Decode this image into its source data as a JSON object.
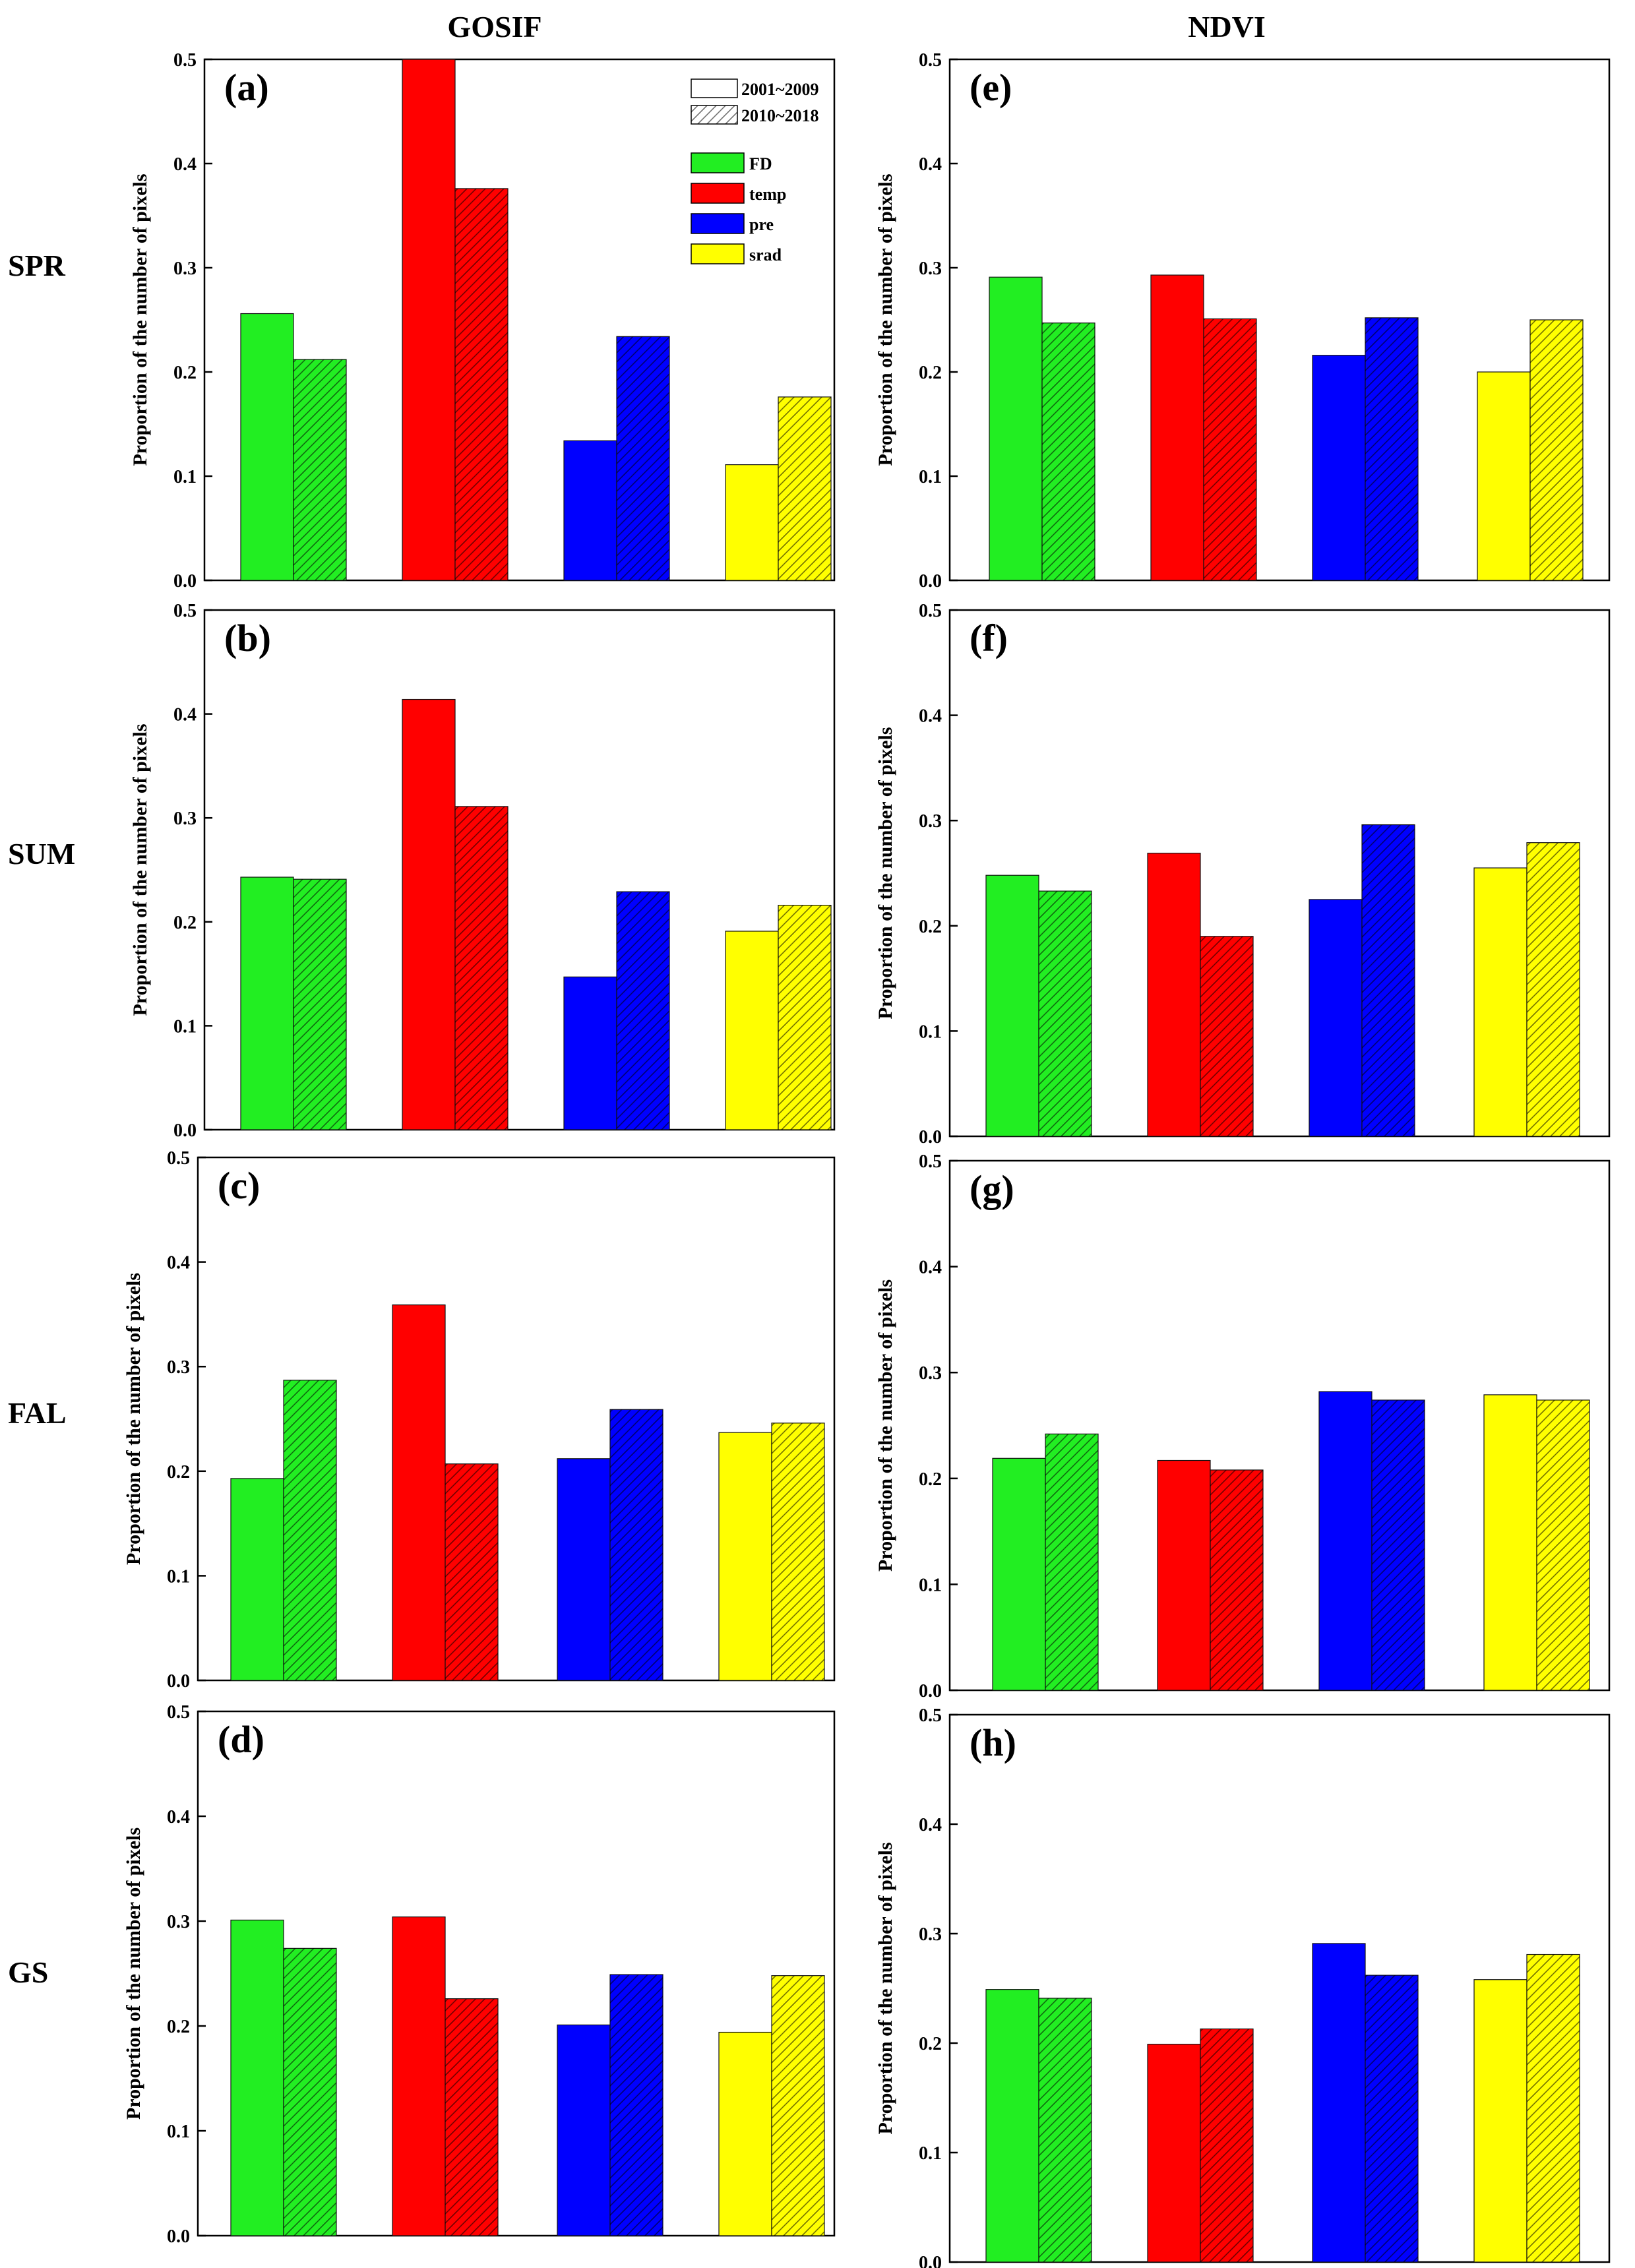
{
  "column_titles": [
    "GOSIF",
    "NDVI"
  ],
  "row_labels": [
    "SPR",
    "SUM",
    "FAL",
    "GS"
  ],
  "legend": {
    "periods": [
      {
        "label": "2001~2009",
        "pattern": "solid"
      },
      {
        "label": "2010~2018",
        "pattern": "hatched"
      }
    ],
    "factors": [
      {
        "label": "FD",
        "color": "#22ee22"
      },
      {
        "label": "temp",
        "color": "#ff0000"
      },
      {
        "label": "pre",
        "color": "#0000ff"
      },
      {
        "label": "srad",
        "color": "#ffff00"
      }
    ]
  },
  "chart_data": [
    {
      "type": "bar",
      "panel": "(a)",
      "column": "GOSIF",
      "season": "SPR",
      "ylabel": "Proportion of the number of pixels",
      "ylim": [
        0,
        0.5
      ],
      "yticks": [
        "0.0",
        "0.1",
        "0.2",
        "0.3",
        "0.4",
        "0.5"
      ],
      "categories": [
        "FD",
        "temp",
        "pre",
        "srad"
      ],
      "series": [
        {
          "name": "2001~2009",
          "values": [
            0.256,
            0.5,
            0.134,
            0.111
          ]
        },
        {
          "name": "2010~2018",
          "values": [
            0.212,
            0.376,
            0.234,
            0.176
          ]
        }
      ]
    },
    {
      "type": "bar",
      "panel": "(b)",
      "column": "GOSIF",
      "season": "SUM",
      "ylabel": "Proportion of the number of pixels",
      "ylim": [
        0,
        0.5
      ],
      "yticks": [
        "0.0",
        "0.1",
        "0.2",
        "0.3",
        "0.4",
        "0.5"
      ],
      "categories": [
        "FD",
        "temp",
        "pre",
        "srad"
      ],
      "series": [
        {
          "name": "2001~2009",
          "values": [
            0.243,
            0.414,
            0.147,
            0.191
          ]
        },
        {
          "name": "2010~2018",
          "values": [
            0.241,
            0.311,
            0.229,
            0.216
          ]
        }
      ]
    },
    {
      "type": "bar",
      "panel": "(c)",
      "column": "GOSIF",
      "season": "FAL",
      "ylabel": "Proportion of the number of pixels",
      "ylim": [
        0,
        0.5
      ],
      "yticks": [
        "0.0",
        "0.1",
        "0.2",
        "0.3",
        "0.4",
        "0.5"
      ],
      "categories": [
        "FD",
        "temp",
        "pre",
        "srad"
      ],
      "series": [
        {
          "name": "2001~2009",
          "values": [
            0.193,
            0.359,
            0.212,
            0.237
          ]
        },
        {
          "name": "2010~2018",
          "values": [
            0.287,
            0.207,
            0.259,
            0.246
          ]
        }
      ]
    },
    {
      "type": "bar",
      "panel": "(d)",
      "column": "GOSIF",
      "season": "GS",
      "ylabel": "Proportion of the number of pixels",
      "ylim": [
        0,
        0.5
      ],
      "yticks": [
        "0.0",
        "0.1",
        "0.2",
        "0.3",
        "0.4",
        "0.5"
      ],
      "categories": [
        "FD",
        "temp",
        "pre",
        "srad"
      ],
      "series": [
        {
          "name": "2001~2009",
          "values": [
            0.301,
            0.304,
            0.201,
            0.194
          ]
        },
        {
          "name": "2010~2018",
          "values": [
            0.274,
            0.226,
            0.249,
            0.248
          ]
        }
      ]
    },
    {
      "type": "bar",
      "panel": "(e)",
      "column": "NDVI",
      "season": "SPR",
      "ylabel": "Proportion of the number of pixels",
      "ylim": [
        0,
        0.5
      ],
      "yticks": [
        "0.0",
        "0.1",
        "0.2",
        "0.3",
        "0.4",
        "0.5"
      ],
      "categories": [
        "FD",
        "temp",
        "pre",
        "srad"
      ],
      "series": [
        {
          "name": "2001~2009",
          "values": [
            0.291,
            0.293,
            0.216,
            0.2
          ]
        },
        {
          "name": "2010~2018",
          "values": [
            0.247,
            0.251,
            0.252,
            0.25
          ]
        }
      ]
    },
    {
      "type": "bar",
      "panel": "(f)",
      "column": "NDVI",
      "season": "SUM",
      "ylabel": "Proportion of the number of pixels",
      "ylim": [
        0,
        0.5
      ],
      "yticks": [
        "0.0",
        "0.1",
        "0.2",
        "0.3",
        "0.4",
        "0.5"
      ],
      "categories": [
        "FD",
        "temp",
        "pre",
        "srad"
      ],
      "series": [
        {
          "name": "2001~2009",
          "values": [
            0.248,
            0.269,
            0.225,
            0.255
          ]
        },
        {
          "name": "2010~2018",
          "values": [
            0.233,
            0.19,
            0.296,
            0.279
          ]
        }
      ]
    },
    {
      "type": "bar",
      "panel": "(g)",
      "column": "NDVI",
      "season": "FAL",
      "ylabel": "Proportion of the number of pixels",
      "ylim": [
        0,
        0.5
      ],
      "yticks": [
        "0.0",
        "0.1",
        "0.2",
        "0.3",
        "0.4",
        "0.5"
      ],
      "categories": [
        "FD",
        "temp",
        "pre",
        "srad"
      ],
      "series": [
        {
          "name": "2001~2009",
          "values": [
            0.219,
            0.217,
            0.282,
            0.279
          ]
        },
        {
          "name": "2010~2018",
          "values": [
            0.242,
            0.208,
            0.274,
            0.274
          ]
        }
      ]
    },
    {
      "type": "bar",
      "panel": "(h)",
      "column": "NDVI",
      "season": "GS",
      "ylabel": "Proportion of the number of pixels",
      "ylim": [
        0,
        0.5
      ],
      "yticks": [
        "0.0",
        "0.1",
        "0.2",
        "0.3",
        "0.4",
        "0.5"
      ],
      "categories": [
        "FD",
        "temp",
        "pre",
        "srad"
      ],
      "series": [
        {
          "name": "2001~2009",
          "values": [
            0.249,
            0.199,
            0.291,
            0.258
          ]
        },
        {
          "name": "2010~2018",
          "values": [
            0.241,
            0.213,
            0.262,
            0.281
          ]
        }
      ]
    }
  ]
}
